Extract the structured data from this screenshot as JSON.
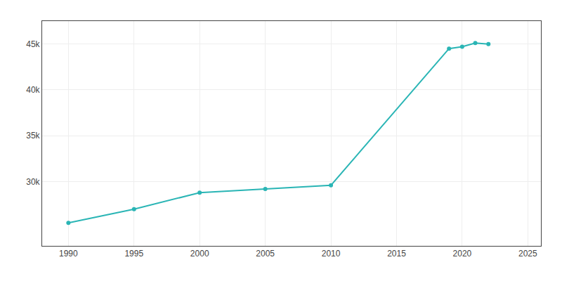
{
  "chart_data": {
    "type": "line",
    "x": [
      1990,
      1995,
      2000,
      2005,
      2010,
      2019,
      2020,
      2021,
      2022
    ],
    "values": [
      25500,
      27000,
      28800,
      29200,
      29600,
      44500,
      44700,
      45100,
      45000
    ],
    "color": "#2ab5b5",
    "marker": "circle",
    "xlim": [
      1988,
      2026
    ],
    "ylim": [
      23000,
      47500
    ],
    "xticks": [
      1990,
      1995,
      2000,
      2005,
      2010,
      2015,
      2020,
      2025
    ],
    "yticks": [
      {
        "value": 30000,
        "label": "30k"
      },
      {
        "value": 35000,
        "label": "35k"
      },
      {
        "value": 40000,
        "label": "40k"
      },
      {
        "value": 45000,
        "label": "45k"
      }
    ],
    "grid": true
  }
}
